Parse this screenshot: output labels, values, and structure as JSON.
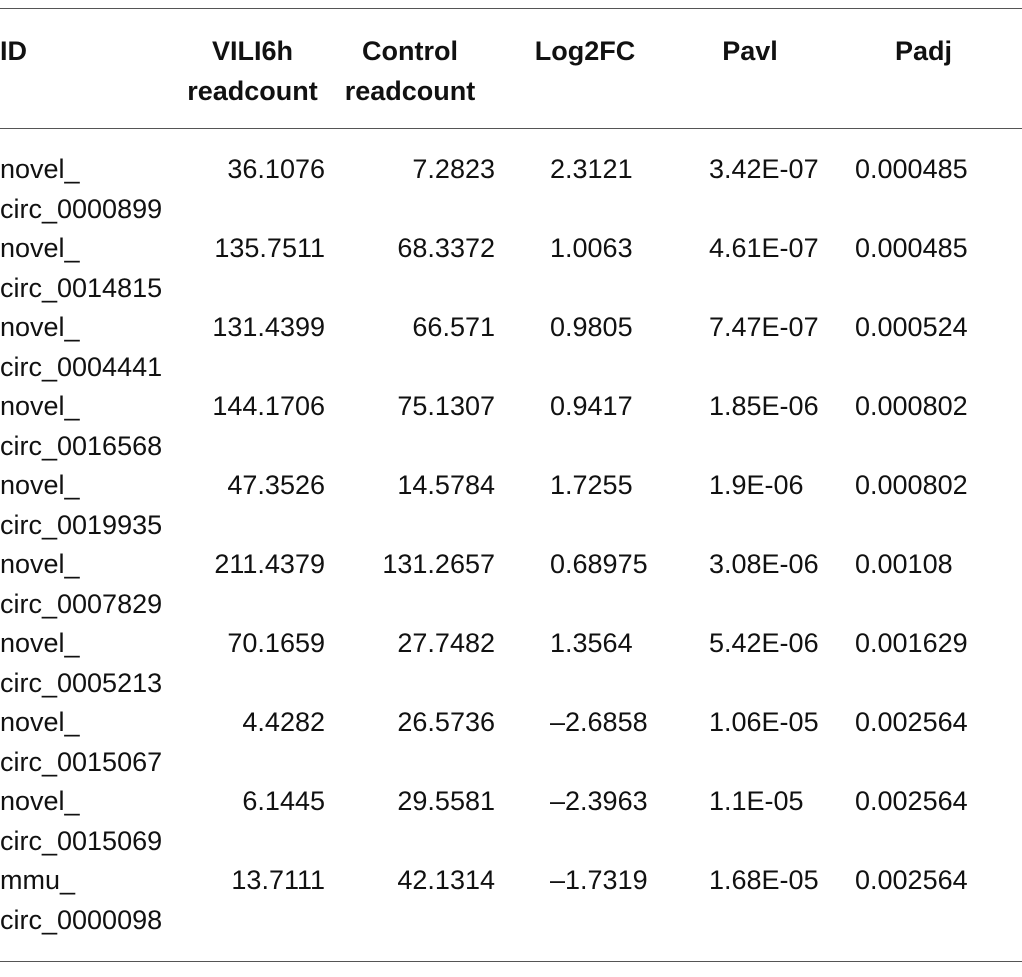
{
  "table": {
    "headers": [
      "ID",
      "VILI6h\nreadcount",
      "Control\nreadcount",
      "Log2FC",
      "Pavl",
      "Padj"
    ],
    "rows": [
      [
        "novel_\ncirc_0000899",
        "36.1076",
        "7.2823",
        "2.3121",
        "3.42E-07",
        "0.000485"
      ],
      [
        "novel_\ncirc_0014815",
        "135.7511",
        "68.3372",
        "1.0063",
        "4.61E-07",
        "0.000485"
      ],
      [
        "novel_\ncirc_0004441",
        "131.4399",
        "66.571",
        "0.9805",
        "7.47E-07",
        "0.000524"
      ],
      [
        "novel_\ncirc_0016568",
        "144.1706",
        "75.1307",
        "0.9417",
        "1.85E-06",
        "0.000802"
      ],
      [
        "novel_\ncirc_0019935",
        "47.3526",
        "14.5784",
        "1.7255",
        "1.9E-06",
        "0.000802"
      ],
      [
        "novel_\ncirc_0007829",
        "211.4379",
        "131.2657",
        "0.68975",
        "3.08E-06",
        "0.00108"
      ],
      [
        "novel_\ncirc_0005213",
        "70.1659",
        "27.7482",
        "1.3564",
        "5.42E-06",
        "0.001629"
      ],
      [
        "novel_\ncirc_0015067",
        "4.4282",
        "26.5736",
        "–2.6858",
        "1.06E-05",
        "0.002564"
      ],
      [
        "novel_\ncirc_0015069",
        "6.1445",
        "29.5581",
        "–2.3963",
        "1.1E-05",
        "0.002564"
      ],
      [
        "mmu_\ncirc_0000098",
        "13.7111",
        "42.1314",
        "–1.7319",
        "1.68E-05",
        "0.002564"
      ]
    ]
  }
}
